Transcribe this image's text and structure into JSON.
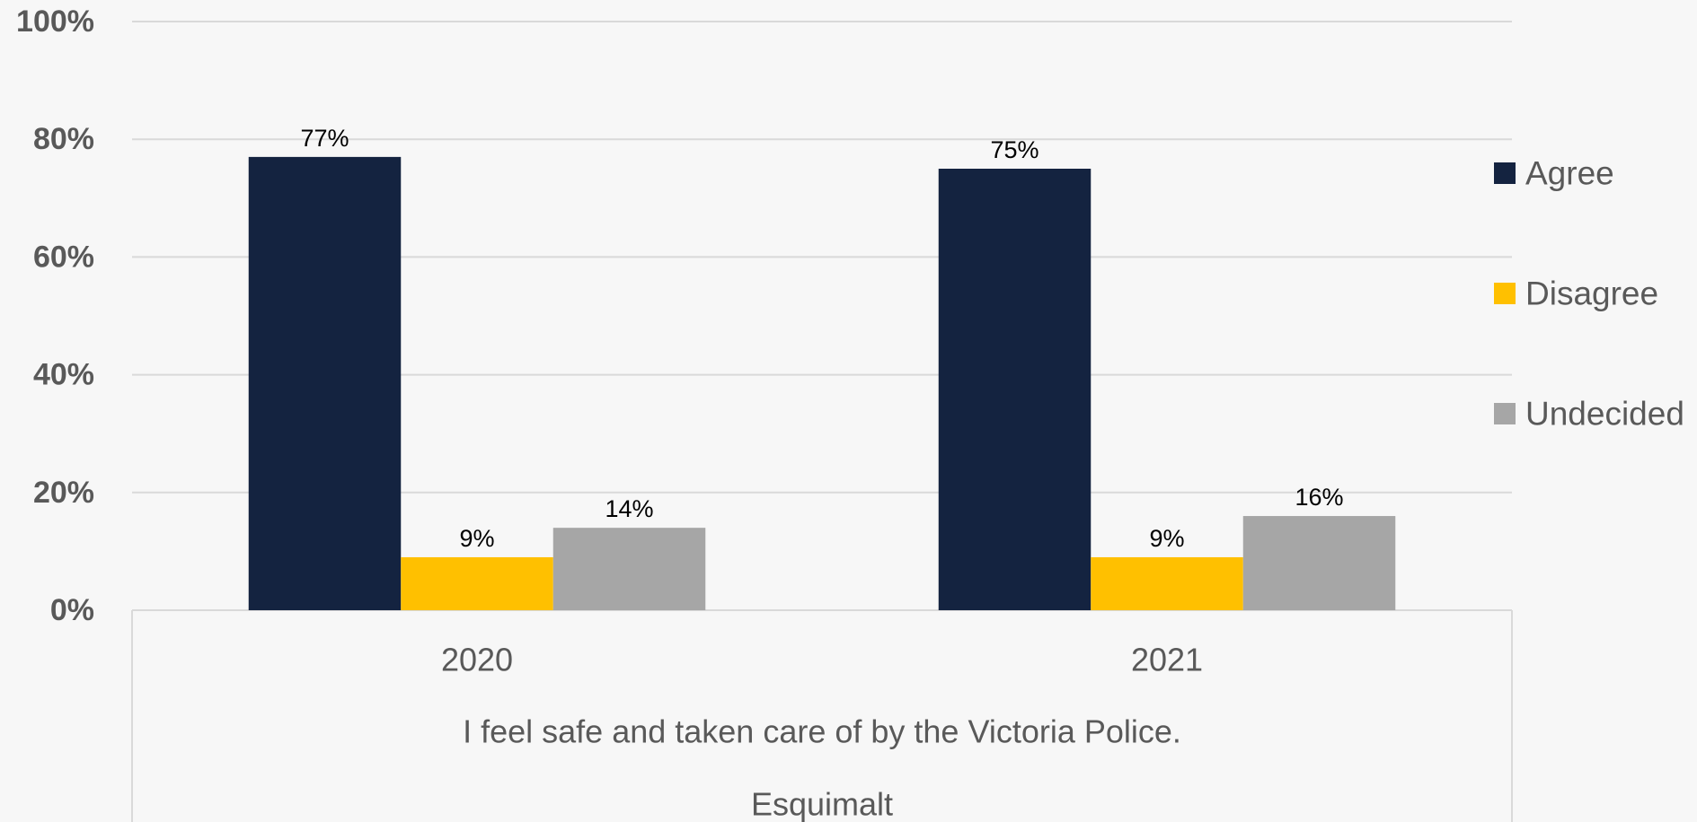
{
  "chart_data": {
    "type": "bar",
    "categories": [
      "2020",
      "2021"
    ],
    "series": [
      {
        "name": "Agree",
        "values": [
          77,
          75
        ],
        "labels": [
          "77%",
          "75%"
        ],
        "color": "#142340"
      },
      {
        "name": "Disagree",
        "values": [
          9,
          9
        ],
        "labels": [
          "9%",
          "9%"
        ],
        "color": "#ffc000"
      },
      {
        "name": "Undecided",
        "values": [
          14,
          16
        ],
        "labels": [
          "14%",
          "16%"
        ],
        "color": "#a6a6a6"
      }
    ],
    "group_labels": [
      "I feel safe and taken care of by the Victoria Police.",
      "Esquimalt"
    ],
    "ylim": [
      0,
      100
    ],
    "yticks": [
      0,
      20,
      40,
      60,
      80,
      100
    ],
    "ytick_labels": [
      "0%",
      "20%",
      "40%",
      "60%",
      "80%",
      "100%"
    ],
    "grid": true,
    "legend_position": "right"
  }
}
